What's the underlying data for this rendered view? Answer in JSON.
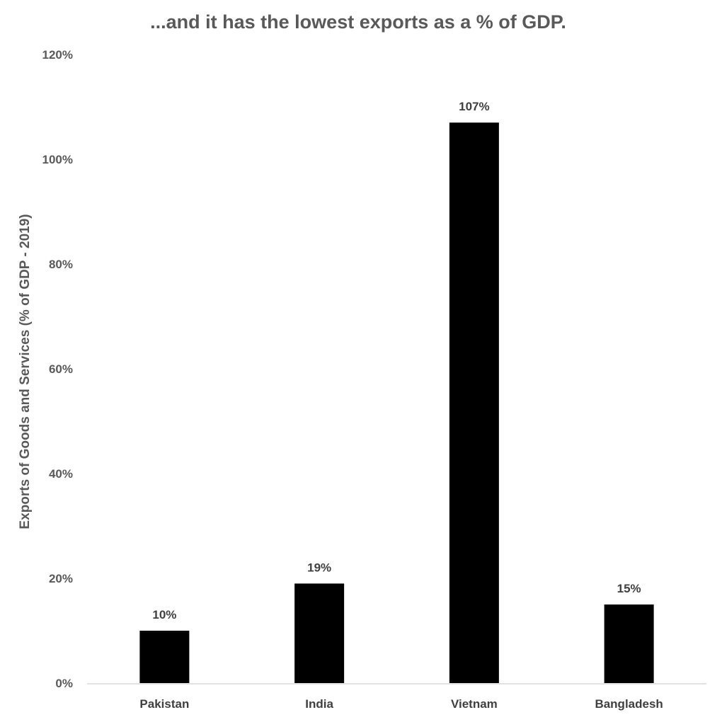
{
  "chart_data": {
    "type": "bar",
    "title": "...and it has the lowest exports as a % of GDP.",
    "xlabel": "",
    "ylabel": "Exports of Goods and Services (% of GDP - 2019)",
    "categories": [
      "Pakistan",
      "India",
      "Vietnam",
      "Bangladesh"
    ],
    "values": [
      10,
      19,
      107,
      15
    ],
    "data_labels": [
      "10%",
      "19%",
      "107%",
      "15%"
    ],
    "ylim": [
      0,
      120
    ],
    "yticks": [
      0,
      20,
      40,
      60,
      80,
      100,
      120
    ],
    "ytick_labels": [
      "0%",
      "20%",
      "40%",
      "60%",
      "80%",
      "100%",
      "120%"
    ],
    "grid": false,
    "legend": "none",
    "colors": {
      "bar": "#000000",
      "axis": "#d9d9d9",
      "text": "#595959"
    }
  }
}
